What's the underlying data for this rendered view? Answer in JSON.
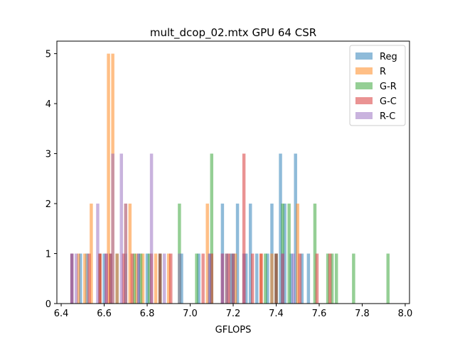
{
  "chart_data": {
    "type": "bar",
    "subtype": "overlaid-histogram",
    "title": "mult_dcop_02.mtx GPU 64 CSR",
    "xlabel": "GFLOPS",
    "ylabel": "",
    "xlim": [
      6.38,
      8.02
    ],
    "ylim": [
      0,
      5.25
    ],
    "xticks": [
      6.4,
      6.6,
      6.8,
      7.0,
      7.2,
      7.4,
      7.6,
      7.8,
      8.0
    ],
    "xtick_labels": [
      "6.4",
      "6.6",
      "6.8",
      "7.0",
      "7.2",
      "7.4",
      "7.6",
      "7.8",
      "8.0"
    ],
    "yticks": [
      0,
      1,
      2,
      3,
      4,
      5
    ],
    "ytick_labels": [
      "0",
      "1",
      "2",
      "3",
      "4",
      "5"
    ],
    "bin_width": 0.0148,
    "bar_alpha": 0.5,
    "grid": false,
    "legend_position": "top-right",
    "series": [
      {
        "name": "Reg",
        "color": "#1f77b4",
        "x": [
          6.45,
          6.49,
          6.52,
          6.58,
          6.6,
          6.63,
          6.66,
          6.7,
          6.76,
          6.8,
          6.86,
          6.96,
          7.04,
          7.09,
          7.15,
          7.17,
          7.19,
          7.22,
          7.26,
          7.28,
          7.31,
          7.36,
          7.38,
          7.4,
          7.42,
          7.44,
          7.47,
          7.49,
          7.52,
          7.55
        ],
        "values": [
          1,
          1,
          1,
          1,
          1,
          1,
          1,
          1,
          1,
          1,
          1,
          1,
          1,
          1,
          2,
          1,
          1,
          2,
          1,
          2,
          1,
          1,
          2,
          1,
          3,
          2,
          1,
          3,
          1,
          1
        ]
      },
      {
        "name": "R",
        "color": "#ff7f0e",
        "x": [
          6.48,
          6.51,
          6.54,
          6.58,
          6.62,
          6.64,
          6.66,
          6.7,
          6.72,
          6.75,
          6.78,
          6.84,
          6.9,
          7.08,
          7.17,
          7.21,
          7.25,
          7.33,
          7.38,
          7.5
        ],
        "values": [
          1,
          1,
          2,
          1,
          5,
          5,
          1,
          2,
          2,
          1,
          1,
          1,
          1,
          2,
          1,
          1,
          1,
          1,
          1,
          2
        ]
      },
      {
        "name": "G-R",
        "color": "#2ca02c",
        "x": [
          6.74,
          6.77,
          6.81,
          6.86,
          6.95,
          7.03,
          7.1,
          7.2,
          7.35,
          7.4,
          7.43,
          7.46,
          7.58,
          7.64,
          7.66,
          7.68,
          7.76,
          7.92
        ],
        "values": [
          1,
          1,
          1,
          1,
          2,
          1,
          3,
          1,
          1,
          1,
          2,
          2,
          2,
          1,
          1,
          1,
          1,
          1
        ]
      },
      {
        "name": "G-C",
        "color": "#d62728",
        "x": [
          6.45,
          6.53,
          6.58,
          6.61,
          6.63,
          6.69,
          6.73,
          6.82,
          6.86,
          6.91,
          7.06,
          7.1,
          7.15,
          7.18,
          7.2,
          7.25,
          7.29,
          7.33,
          7.4,
          7.43,
          7.51,
          7.59,
          7.65
        ],
        "values": [
          1,
          1,
          1,
          1,
          1,
          1,
          1,
          1,
          1,
          1,
          1,
          1,
          1,
          1,
          1,
          3,
          1,
          1,
          1,
          1,
          1,
          1,
          1
        ]
      },
      {
        "name": "R-C",
        "color": "#9467bd",
        "x": [
          6.45,
          6.47,
          6.57,
          6.61,
          6.64,
          6.68,
          6.7,
          6.76,
          6.82,
          6.88,
          6.95,
          7.09,
          7.15,
          7.17,
          7.2,
          7.25,
          7.43,
          7.48
        ],
        "values": [
          1,
          1,
          2,
          1,
          3,
          3,
          2,
          1,
          3,
          1,
          1,
          1,
          1,
          1,
          1,
          1,
          1,
          1
        ]
      }
    ]
  }
}
